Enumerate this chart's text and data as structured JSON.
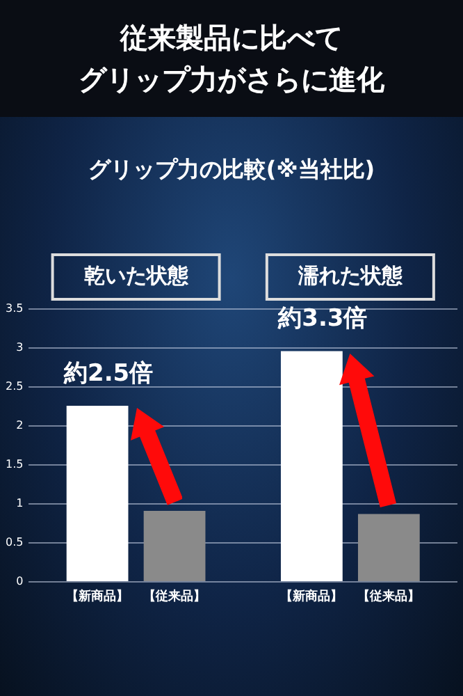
{
  "chart_data": {
    "type": "bar",
    "title": "従来製品に比べて",
    "subtitle": "グリップ力がさらに進化",
    "categories": [
      "乾いた状態",
      "濡れた状態"
    ],
    "series": [
      {
        "name": "【新商品】",
        "color": "#ffffff",
        "values": [
          2.26,
          2.96
        ]
      },
      {
        "name": "【従来品】",
        "color": "#8a8a8a",
        "values": [
          0.91,
          0.87
        ]
      }
    ],
    "ylim": [
      0,
      3.5
    ],
    "yticks": [
      0,
      0.5,
      1,
      1.5,
      2,
      2.5,
      3,
      3.5
    ],
    "grid": "y",
    "legend": false,
    "annotations": [
      "グリップ力の比較(※当社比)",
      "約2.5倍",
      "約3.3倍"
    ]
  }
}
